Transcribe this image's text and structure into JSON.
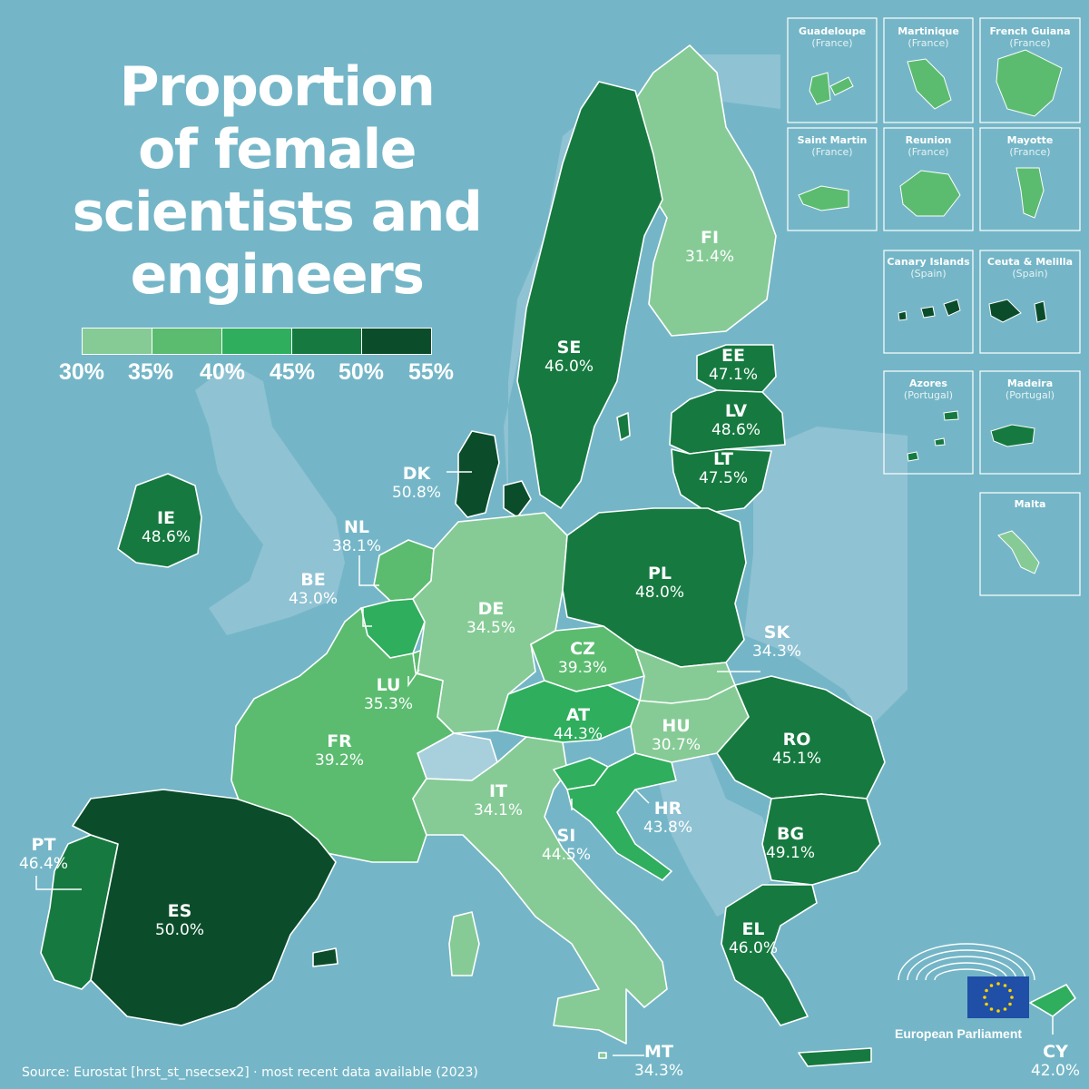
{
  "title_lines": [
    "Proportion",
    "of female",
    "scientists and",
    "engineers"
  ],
  "legend": {
    "ticks": [
      "30%",
      "35%",
      "40%",
      "45%",
      "50%",
      "55%"
    ],
    "colors": [
      "#86cb96",
      "#5bbc70",
      "#2fae5d",
      "#167a40",
      "#0b4d2b"
    ]
  },
  "colors": {
    "sea": "#74b6c7",
    "non_eu_land": "#8fc2d3",
    "border": "#ffffff",
    "no_data": "#a8cfdc"
  },
  "countries": [
    {
      "code": "FI",
      "value": "31.4%",
      "color": "#86cb96"
    },
    {
      "code": "SE",
      "value": "46.0%",
      "color": "#167a40"
    },
    {
      "code": "EE",
      "value": "47.1%",
      "color": "#167a40"
    },
    {
      "code": "LV",
      "value": "48.6%",
      "color": "#167a40"
    },
    {
      "code": "LT",
      "value": "47.5%",
      "color": "#167a40"
    },
    {
      "code": "DK",
      "value": "50.8%",
      "color": "#0b4d2b"
    },
    {
      "code": "IE",
      "value": "48.6%",
      "color": "#167a40"
    },
    {
      "code": "NL",
      "value": "38.1%",
      "color": "#5bbc70"
    },
    {
      "code": "BE",
      "value": "43.0%",
      "color": "#2fae5d"
    },
    {
      "code": "LU",
      "value": "35.3%",
      "color": "#5bbc70"
    },
    {
      "code": "DE",
      "value": "34.5%",
      "color": "#86cb96"
    },
    {
      "code": "PL",
      "value": "48.0%",
      "color": "#167a40"
    },
    {
      "code": "CZ",
      "value": "39.3%",
      "color": "#5bbc70"
    },
    {
      "code": "SK",
      "value": "34.3%",
      "color": "#86cb96"
    },
    {
      "code": "AT",
      "value": "44.3%",
      "color": "#2fae5d"
    },
    {
      "code": "HU",
      "value": "30.7%",
      "color": "#86cb96"
    },
    {
      "code": "RO",
      "value": "45.1%",
      "color": "#167a40"
    },
    {
      "code": "FR",
      "value": "39.2%",
      "color": "#5bbc70"
    },
    {
      "code": "IT",
      "value": "34.1%",
      "color": "#86cb96"
    },
    {
      "code": "SI",
      "value": "44.5%",
      "color": "#2fae5d"
    },
    {
      "code": "HR",
      "value": "43.8%",
      "color": "#2fae5d"
    },
    {
      "code": "BG",
      "value": "49.1%",
      "color": "#167a40"
    },
    {
      "code": "PT",
      "value": "46.4%",
      "color": "#167a40"
    },
    {
      "code": "ES",
      "value": "50.0%",
      "color": "#0b4d2b"
    },
    {
      "code": "EL",
      "value": "46.0%",
      "color": "#167a40"
    },
    {
      "code": "MT",
      "value": "34.3%",
      "color": "#86cb96"
    },
    {
      "code": "CY",
      "value": "42.0%",
      "color": "#2fae5d"
    }
  ],
  "insets": [
    {
      "name": "Guadeloupe",
      "parent": "(France)",
      "color": "#5bbc70"
    },
    {
      "name": "Martinique",
      "parent": "(France)",
      "color": "#5bbc70"
    },
    {
      "name": "French Guiana",
      "parent": "(France)",
      "color": "#5bbc70"
    },
    {
      "name": "Saint Martin",
      "parent": "(France)",
      "color": "#5bbc70"
    },
    {
      "name": "Reunion",
      "parent": "(France)",
      "color": "#5bbc70"
    },
    {
      "name": "Mayotte",
      "parent": "(France)",
      "color": "#5bbc70"
    },
    {
      "name": "Canary Islands",
      "parent": "(Spain)",
      "color": "#0b4d2b"
    },
    {
      "name": "Ceuta & Melilla",
      "parent": "(Spain)",
      "color": "#0b4d2b"
    },
    {
      "name": "Azores",
      "parent": "(Portugal)",
      "color": "#167a40"
    },
    {
      "name": "Madeira",
      "parent": "(Portugal)",
      "color": "#167a40"
    },
    {
      "name": "Malta",
      "parent": "",
      "color": "#86cb96"
    }
  ],
  "source": "Source: Eurostat [hrst_st_nsecsex2] · most recent data available (2023)",
  "logo": {
    "text": "European Parliament",
    "flag_color": "#1f4fa6",
    "star_color": "#ffd200"
  }
}
